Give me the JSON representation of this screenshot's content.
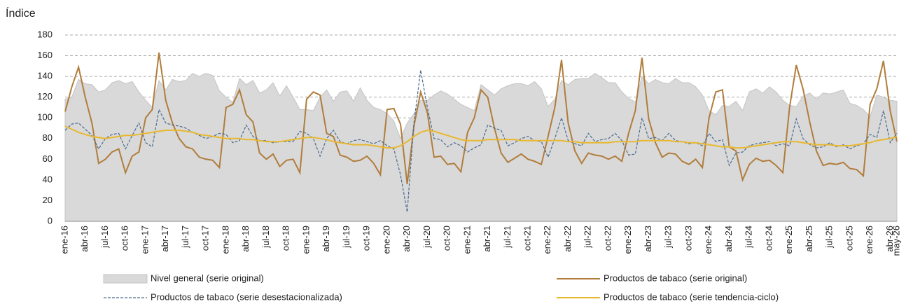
{
  "chart_data": {
    "type": "line",
    "y_label": "Índice",
    "categories": [
      "ene-16",
      null,
      null,
      "abr-16",
      null,
      null,
      "jul-16",
      null,
      null,
      "oct-16",
      null,
      null,
      "ene-17",
      null,
      null,
      "abr-17",
      null,
      null,
      "jul-17",
      null,
      null,
      "oct-17",
      null,
      null,
      "ene-18",
      null,
      null,
      "abr-18",
      null,
      null,
      "jul-18",
      null,
      null,
      "oct-18",
      null,
      null,
      "ene-19",
      null,
      null,
      "abr-19",
      null,
      null,
      "jul-19",
      null,
      null,
      "oct-19",
      null,
      null,
      "ene-20",
      null,
      null,
      "abr-20",
      null,
      null,
      "jul-20",
      null,
      null,
      "oct-20",
      null,
      null,
      "ene-21",
      null,
      null,
      "abr-21",
      null,
      null,
      "jul-21",
      null,
      null,
      "oct-21",
      null,
      null,
      "ene-22",
      null,
      null,
      "abr-22",
      null,
      null,
      "jul-22",
      null,
      null,
      "oct-22",
      null,
      null,
      "ene-23",
      null,
      null,
      "abr-23",
      null,
      null,
      "jul-23",
      null,
      null,
      "oct-23",
      null,
      null,
      "ene-24",
      null,
      null,
      "abr-24",
      null,
      null,
      "jul-24",
      null,
      null,
      "oct-24",
      null,
      null,
      "ene-25",
      null,
      null,
      "abr-25",
      null,
      null,
      "jul-25",
      null,
      null,
      "oct-25",
      null,
      null,
      "ene-26",
      null,
      null,
      "abr-26",
      "may-26"
    ],
    "series": [
      {
        "name": "Nivel general (serie original)",
        "kind": "area",
        "color": "#d9d9d9",
        "values": [
          118,
          120,
          137,
          133,
          132,
          125,
          127,
          134,
          136,
          133,
          135,
          125,
          117,
          110,
          136,
          127,
          137,
          135,
          136,
          143,
          140,
          143,
          141,
          126,
          120,
          115,
          138,
          132,
          136,
          124,
          127,
          134,
          121,
          131,
          120,
          108,
          108,
          107,
          120,
          127,
          116,
          125,
          126,
          116,
          129,
          117,
          110,
          108,
          104,
          97,
          80,
          95,
          104,
          117,
          117,
          122,
          126,
          123,
          118,
          113,
          110,
          107,
          132,
          127,
          122,
          128,
          131,
          133,
          133,
          131,
          135,
          128,
          111,
          118,
          136,
          132,
          137,
          138,
          138,
          143,
          139,
          134,
          134,
          125,
          119,
          115,
          140,
          133,
          137,
          134,
          133,
          138,
          134,
          134,
          130,
          122,
          107,
          103,
          112,
          111,
          116,
          107,
          125,
          128,
          124,
          130,
          125,
          117,
          112,
          111,
          121,
          124,
          118,
          124,
          123,
          125,
          127,
          114,
          112,
          108,
          101,
          122,
          120,
          117,
          116
        ]
      },
      {
        "name": "Productos de tabaco (serie original)",
        "kind": "line",
        "color": "#b07d3c",
        "dash": false,
        "values": [
          106,
          130,
          149,
          120,
          95,
          56,
          60,
          67,
          70,
          47,
          63,
          67,
          100,
          108,
          163,
          117,
          95,
          80,
          72,
          70,
          62,
          60,
          59,
          52,
          110,
          113,
          127,
          103,
          96,
          66,
          60,
          65,
          53,
          59,
          60,
          47,
          118,
          125,
          122,
          85,
          82,
          64,
          62,
          58,
          59,
          63,
          56,
          45,
          108,
          109,
          94,
          36,
          92,
          125,
          105,
          62,
          63,
          55,
          56,
          48,
          86,
          100,
          127,
          120,
          90,
          66,
          57,
          61,
          65,
          60,
          58,
          55,
          82,
          110,
          156,
          95,
          68,
          56,
          66,
          64,
          63,
          60,
          63,
          58,
          85,
          107,
          158,
          99,
          76,
          62,
          66,
          65,
          58,
          55,
          60,
          52,
          100,
          125,
          127,
          72,
          68,
          40,
          55,
          61,
          58,
          59,
          54,
          47,
          110,
          151,
          128,
          96,
          68,
          54,
          56,
          55,
          57,
          51,
          50,
          44,
          113,
          128,
          155,
          107,
          77
        ]
      },
      {
        "name": "Productos de tabaco (serie desestacionalizada)",
        "kind": "line",
        "color": "#4a6b8f",
        "dash": true,
        "values": [
          88,
          94,
          95,
          89,
          83,
          70,
          80,
          84,
          85,
          70,
          83,
          95,
          76,
          72,
          108,
          95,
          93,
          92,
          90,
          86,
          83,
          80,
          82,
          85,
          84,
          76,
          78,
          93,
          82,
          78,
          78,
          76,
          77,
          77,
          77,
          87,
          85,
          80,
          63,
          80,
          88,
          77,
          75,
          78,
          79,
          77,
          75,
          78,
          73,
          70,
          45,
          9,
          95,
          146,
          110,
          80,
          79,
          72,
          76,
          73,
          67,
          71,
          74,
          93,
          90,
          88,
          73,
          76,
          80,
          82,
          78,
          77,
          62,
          80,
          100,
          78,
          75,
          73,
          85,
          77,
          79,
          80,
          85,
          78,
          64,
          65,
          100,
          80,
          81,
          78,
          85,
          78,
          77,
          75,
          76,
          73,
          85,
          77,
          79,
          54,
          66,
          67,
          73,
          75,
          76,
          77,
          73,
          75,
          73,
          99,
          80,
          74,
          71,
          72,
          76,
          72,
          74,
          70,
          73,
          75,
          84,
          81,
          107,
          76,
          85
        ]
      },
      {
        "name": "Productos de tabaco (serie tendencia-ciclo)",
        "kind": "line",
        "color": "#e8b830",
        "dash": false,
        "values": [
          92,
          89,
          86,
          84,
          82,
          81,
          80,
          81,
          82,
          83,
          83,
          84,
          85,
          86,
          87,
          88,
          88,
          88,
          87,
          86,
          84,
          83,
          82,
          81,
          80,
          80,
          80,
          79,
          79,
          78,
          77,
          77,
          77,
          78,
          79,
          80,
          81,
          81,
          80,
          79,
          77,
          76,
          75,
          74,
          74,
          74,
          73,
          72,
          71,
          71,
          73,
          77,
          82,
          86,
          88,
          87,
          85,
          83,
          81,
          79,
          78,
          78,
          78,
          79,
          79,
          79,
          79,
          79,
          78,
          78,
          78,
          78,
          78,
          78,
          78,
          77,
          77,
          76,
          76,
          76,
          76,
          76,
          77,
          77,
          77,
          77,
          78,
          78,
          78,
          78,
          78,
          77,
          77,
          76,
          76,
          75,
          74,
          73,
          72,
          72,
          71,
          71,
          72,
          73,
          74,
          75,
          76,
          77,
          77,
          77,
          76,
          75,
          74,
          74,
          74,
          73,
          73,
          73,
          74,
          75,
          76,
          78,
          79,
          80,
          82
        ]
      }
    ],
    "ylim": [
      0,
      180
    ],
    "yticks": [
      0,
      20,
      40,
      60,
      80,
      100,
      120,
      140,
      160,
      180
    ],
    "grid": true
  }
}
